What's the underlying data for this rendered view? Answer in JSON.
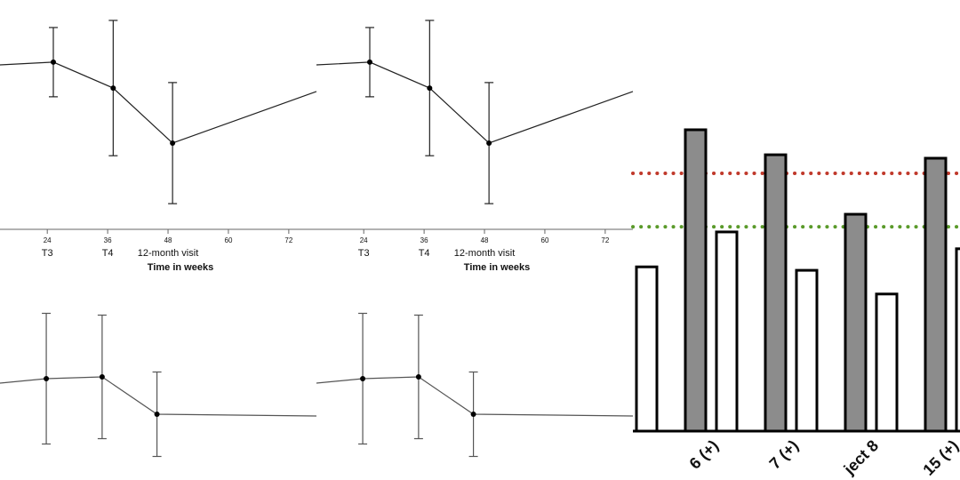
{
  "chart_data": [
    {
      "type": "line",
      "x": [
        14.6,
        25.2,
        37.1,
        48.9,
        77.5
      ],
      "xlim": [
        14.6,
        77.5
      ],
      "ylim": [
        0,
        100
      ],
      "xticks": [
        24,
        36,
        48,
        60,
        72
      ],
      "visit_labels": [
        {
          "value": 24,
          "label": "T3"
        },
        {
          "value": 36,
          "label": "T4"
        },
        {
          "value": 48,
          "label": "12-month visit"
        }
      ],
      "xlabel": "Time in weeks",
      "series": [
        {
          "color": "#222222",
          "values": [
            71.7,
            72.9,
            61.6,
            37.6,
            60.1
          ],
          "errors": [
            null,
            15.1,
            29.5,
            26.4,
            null
          ]
        }
      ]
    },
    {
      "type": "line",
      "x": [
        14.6,
        25.2,
        37.1,
        48.9,
        77.5
      ],
      "xlim": [
        14.6,
        77.5
      ],
      "ylim": [
        0,
        100
      ],
      "xticks": [
        24,
        36,
        48,
        60,
        72
      ],
      "visit_labels": [
        {
          "value": 24,
          "label": "T3"
        },
        {
          "value": 36,
          "label": "T4"
        },
        {
          "value": 48,
          "label": "12-month visit"
        }
      ],
      "xlabel": "Time in weeks",
      "series": [
        {
          "color": "#222222",
          "values": [
            71.7,
            72.9,
            61.6,
            37.6,
            60.1
          ],
          "errors": [
            null,
            15.1,
            29.5,
            26.4,
            null
          ]
        }
      ]
    },
    {
      "type": "line",
      "x": [
        14.6,
        23.8,
        34.9,
        45.8,
        77.5
      ],
      "xlim": [
        14.6,
        77.5
      ],
      "ylim": [
        0,
        100
      ],
      "series": [
        {
          "color": "#555555",
          "values": [
            54.5,
            57,
            58,
            37,
            36
          ],
          "errors": [
            null,
            36.75,
            34.75,
            23.75,
            null
          ]
        }
      ]
    },
    {
      "type": "line",
      "x": [
        14.6,
        23.8,
        34.9,
        45.8,
        77.5
      ],
      "xlim": [
        14.6,
        77.5
      ],
      "ylim": [
        0,
        100
      ],
      "series": [
        {
          "color": "#555555",
          "values": [
            54.5,
            57,
            58,
            37,
            36
          ],
          "errors": [
            null,
            36.75,
            34.75,
            23.75,
            null
          ]
        }
      ]
    },
    {
      "type": "bar",
      "categories": [
        null,
        "6 (+)",
        "7 (+)",
        "ject 8",
        "15 (+)"
      ],
      "ylim": [
        0,
        100
      ],
      "series": [
        {
          "color": "#8c8c8c",
          "values": [
            null,
            69.9,
            64.1,
            50.3,
            63.3
          ]
        },
        {
          "color": "#ffffff",
          "values": [
            38.1,
            46.2,
            37.3,
            31.8,
            42.3
          ]
        }
      ],
      "reference_lines": [
        {
          "value": 59.8,
          "color": "#c0392b"
        },
        {
          "value": 47.4,
          "color": "#5a9a2a"
        }
      ]
    }
  ]
}
